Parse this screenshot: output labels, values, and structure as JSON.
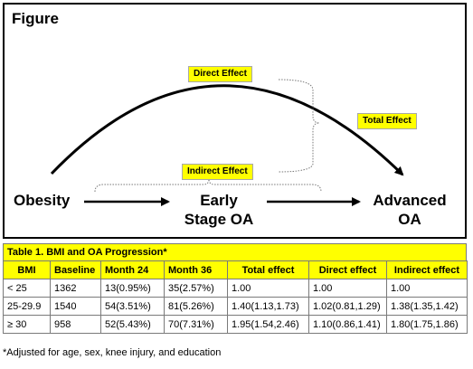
{
  "figure": {
    "title": "Figure",
    "labels": {
      "direct_effect": "Direct Effect",
      "indirect_effect": "Indirect Effect",
      "total_effect": "Total Effect"
    },
    "nodes": {
      "obesity": "Obesity",
      "early_line1": "Early",
      "early_line2": "Stage OA",
      "advanced_line1": "Advanced",
      "advanced_line2": "OA"
    },
    "colors": {
      "label_fill": "#ffff00",
      "table_header_fill": "#ffff00"
    }
  },
  "table": {
    "caption": "Table 1. BMI and OA Progression*",
    "columns": [
      "BMI",
      "Baseline",
      "Month 24",
      "Month 36",
      "Total effect",
      "Direct effect",
      "Indirect effect"
    ],
    "rows": [
      [
        "< 25",
        "1362",
        "13(0.95%)",
        "35(2.57%)",
        "1.00",
        "1.00",
        "1.00"
      ],
      [
        "25-29.9",
        "1540",
        "54(3.51%)",
        "81(5.26%)",
        "1.40(1.13,1.73)",
        "1.02(0.81,1.29)",
        "1.38(1.35,1.42)"
      ],
      [
        "≥ 30",
        "958",
        "52(5.43%)",
        "70(7.31%)",
        "1.95(1.54,2.46)",
        "1.10(0.86,1.41)",
        "1.80(1.75,1.86)"
      ]
    ],
    "footnote": "*Adjusted for age, sex, knee injury, and education"
  }
}
